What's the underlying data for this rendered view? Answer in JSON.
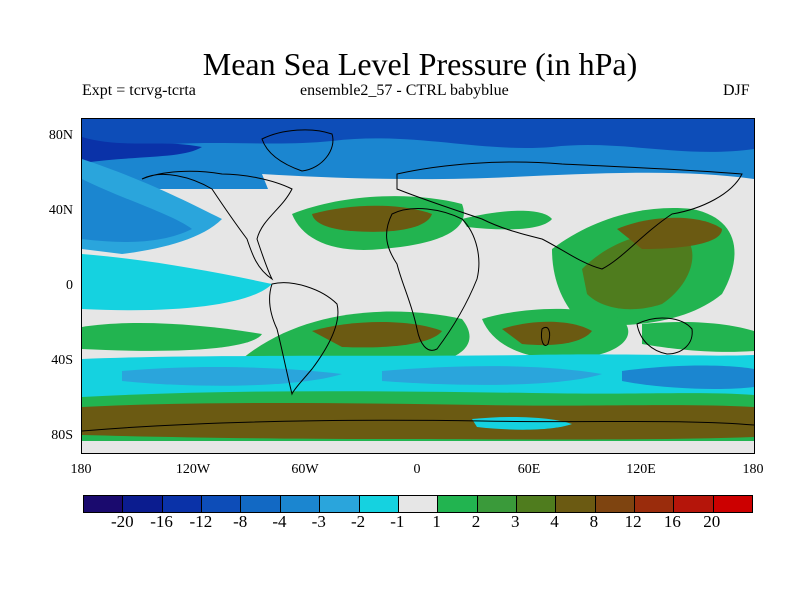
{
  "title": "Mean Sea Level Pressure (in hPa)",
  "subtitle_left": "Expt = tcrvg-tcrta",
  "subtitle_center": "ensemble2_57 - CTRL babyblue",
  "subtitle_right": "DJF",
  "y_ticks": [
    "80N",
    "40N",
    "0",
    "40S",
    "80S"
  ],
  "x_ticks": [
    "180",
    "120W",
    "60W",
    "0",
    "60E",
    "120E",
    "180"
  ],
  "colorbar": {
    "colors": [
      "#1a0a6e",
      "#0b1c8f",
      "#0a32a8",
      "#0d4db8",
      "#1269c4",
      "#1b86d0",
      "#2aa5dc",
      "#15d2e0",
      "#e6e6e6",
      "#22b450",
      "#3a9a3a",
      "#4f7c1e",
      "#6b5a12",
      "#7e4410",
      "#9a2c0c",
      "#b5150a",
      "#cc0000"
    ],
    "labels": [
      "-20",
      "-16",
      "-12",
      "-8",
      "-4",
      "-3",
      "-2",
      "-1",
      "1",
      "2",
      "3",
      "4",
      "8",
      "12",
      "16",
      "20"
    ]
  }
}
